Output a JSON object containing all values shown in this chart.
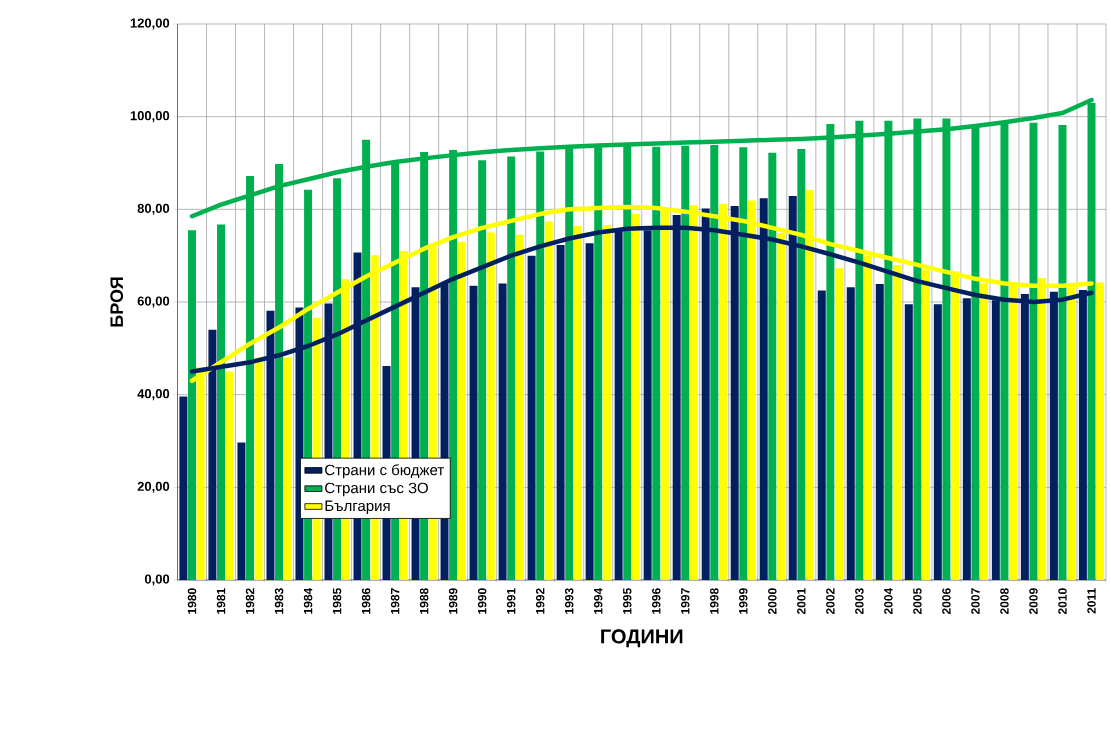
{
  "chart_data": {
    "type": "bar",
    "xlabel": "ГОДИНИ",
    "ylabel": "БРОЯ",
    "categories": [
      "1980",
      "1981",
      "1982",
      "1983",
      "1984",
      "1985",
      "1986",
      "1987",
      "1988",
      "1989",
      "1990",
      "1991",
      "1992",
      "1993",
      "1994",
      "1995",
      "1996",
      "1997",
      "1998",
      "1999",
      "2000",
      "2001",
      "2002",
      "2003",
      "2004",
      "2005",
      "2006",
      "2007",
      "2008",
      "2009",
      "2010",
      "2011"
    ],
    "series": [
      {
        "name": "Страни с бюджет",
        "color": "#002060",
        "values": [
          39.6,
          54,
          29.7,
          58.1,
          58.8,
          59.7,
          70.7,
          46.2,
          63.2,
          64,
          63.5,
          64,
          70,
          72.3,
          72.7,
          75.5,
          75.5,
          78.8,
          80.2,
          80.7,
          82.4,
          82.9,
          62.5,
          63.2,
          63.9,
          59.5,
          59.5,
          60.8,
          60.4,
          61.7,
          62.2,
          62.6
        ]
      },
      {
        "name": "Страни със ЗО",
        "color": "#00b050",
        "values": [
          75.5,
          76.7,
          87.2,
          89.8,
          84.2,
          86.7,
          95,
          90.3,
          92.4,
          92.8,
          90.6,
          91.4,
          92.5,
          93.2,
          93.5,
          93.9,
          93.5,
          93.7,
          93.9,
          93.4,
          92.2,
          93,
          98.4,
          99.1,
          99.1,
          99.6,
          99.6,
          97.8,
          98.6,
          98.7,
          98.2,
          103
        ]
      },
      {
        "name": "България",
        "color": "#ffff00",
        "values": [
          45.9,
          45,
          48,
          48,
          56.6,
          64.9,
          70.1,
          71,
          72,
          73,
          75,
          74.5,
          77.4,
          76.4,
          76.6,
          79,
          80,
          80.9,
          81.2,
          81.9,
          74.9,
          84.2,
          67.3,
          70,
          68,
          67,
          66.6,
          64,
          64,
          65.2,
          63,
          64.2
        ]
      },
      {
        "type": "line",
        "color": "#00b050",
        "values": [
          78.5,
          81,
          83,
          85,
          86.5,
          88,
          89.2,
          90.2,
          91,
          91.7,
          92.3,
          92.8,
          93.2,
          93.5,
          93.8,
          94,
          94.2,
          94.4,
          94.6,
          94.8,
          95,
          95.2,
          95.5,
          95.9,
          96.3,
          96.8,
          97.3,
          98,
          98.8,
          99.7,
          100.8,
          103.6
        ]
      },
      {
        "type": "line",
        "color": "#ffff00",
        "values": [
          43,
          47,
          51,
          54.5,
          58.5,
          62,
          65.5,
          68.5,
          71.5,
          74,
          76,
          77.5,
          79,
          80,
          80.3,
          80.5,
          80.3,
          79.5,
          78.5,
          77.5,
          76,
          74.5,
          72.5,
          71,
          69.5,
          68,
          66.5,
          65,
          64,
          63.5,
          63.5,
          64
        ]
      },
      {
        "type": "line",
        "color": "#002060",
        "values": [
          45,
          46,
          47,
          48.5,
          50.5,
          53,
          56,
          59,
          62,
          65,
          67.5,
          70,
          72,
          73.7,
          75,
          75.8,
          76,
          76,
          75.5,
          74.5,
          73.5,
          72,
          70.3,
          68.5,
          66.5,
          64.5,
          63,
          61.5,
          60.5,
          60,
          60.5,
          62
        ]
      }
    ],
    "ylim": [
      0,
      120
    ],
    "yticks": [
      {
        "value": 0,
        "label": "0,00"
      },
      {
        "value": 20,
        "label": "20,00"
      },
      {
        "value": 40,
        "label": "40,00"
      },
      {
        "value": 60,
        "label": "60,00"
      },
      {
        "value": 80,
        "label": "80,00"
      },
      {
        "value": 100,
        "label": "100,00"
      },
      {
        "value": 120,
        "label": "120,00"
      }
    ],
    "grid": true,
    "legend": "bottom left"
  }
}
